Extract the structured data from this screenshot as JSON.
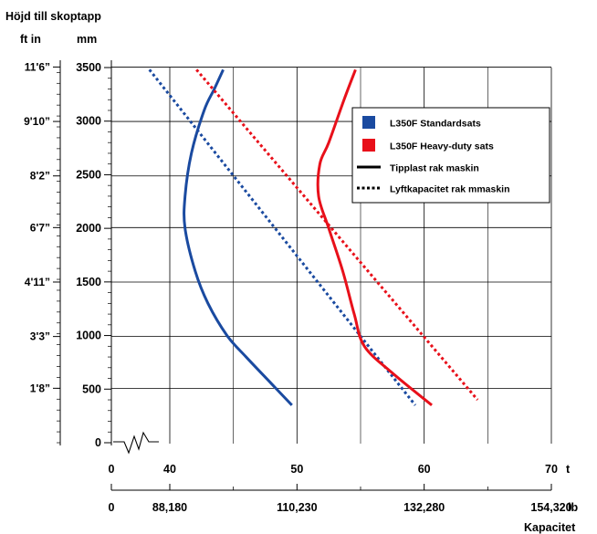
{
  "chart_data": {
    "type": "line",
    "title": "Höjd till skoptapp",
    "left_units": {
      "imperial": "ft in",
      "metric": "mm"
    },
    "y_metric_ticks": [
      "0",
      "500",
      "1000",
      "1500",
      "2000",
      "2500",
      "3000",
      "3500"
    ],
    "y_imperial_ticks": [
      {
        "label": "1'8”",
        "mm": 508
      },
      {
        "label": "3'3”",
        "mm": 991
      },
      {
        "label": "4'11”",
        "mm": 1499
      },
      {
        "label": "6'7”",
        "mm": 2007
      },
      {
        "label": "8'2”",
        "mm": 2489
      },
      {
        "label": "9'10”",
        "mm": 2997
      },
      {
        "label": "11'6”",
        "mm": 3505
      }
    ],
    "x_t_ticks": [
      "0",
      "40",
      "50",
      "60",
      "70"
    ],
    "x_t_unit": "t",
    "x_lb_ticks": [
      {
        "label": "0",
        "t": 0
      },
      {
        "label": "88,180",
        "t": 40
      },
      {
        "label": "110,230",
        "t": 50
      },
      {
        "label": "132,280",
        "t": 60
      },
      {
        "label": "154,320",
        "t": 70
      }
    ],
    "x_lb_unit": "lb",
    "xlabel": "Kapacitet",
    "axis_break_note": "x axis broken between 0 and 40 t",
    "ylim": [
      0,
      3500
    ],
    "xlim": [
      36,
      70
    ],
    "legend": {
      "placement": "right",
      "entries": [
        {
          "label": "L350F Standardsats",
          "swatch": "square",
          "color": "#1a4aa0"
        },
        {
          "label": "L350F Heavy-duty sats",
          "swatch": "square",
          "color": "#e8101a"
        },
        {
          "label": "Tipplast rak maskin",
          "swatch": "solid-line",
          "color": "#000000"
        },
        {
          "label": "Lyftkapacitet rak mmaskin",
          "swatch": "dotted-line",
          "color": "#000000"
        }
      ]
    },
    "series": [
      {
        "kit": "L350F Standardsats",
        "measure": "Tipplast rak maskin",
        "color": "#1a4aa0",
        "style": "solid",
        "points": [
          [
            49.6,
            350
          ],
          [
            48.0,
            550
          ],
          [
            46.0,
            800
          ],
          [
            44.5,
            1000
          ],
          [
            43.0,
            1300
          ],
          [
            42.0,
            1600
          ],
          [
            41.2,
            2000
          ],
          [
            41.2,
            2300
          ],
          [
            41.7,
            2700
          ],
          [
            42.7,
            3100
          ],
          [
            43.5,
            3300
          ],
          [
            44.2,
            3480
          ]
        ]
      },
      {
        "kit": "L350F Standardsats",
        "measure": "Lyftkapacitet rak mmaskin",
        "color": "#1a4aa0",
        "style": "dotted",
        "points": [
          [
            38.4,
            3480
          ],
          [
            59.3,
            350
          ]
        ]
      },
      {
        "kit": "L350F Heavy-duty sats",
        "measure": "Tipplast rak maskin",
        "color": "#e8101a",
        "style": "solid",
        "points": [
          [
            60.6,
            350
          ],
          [
            57.5,
            650
          ],
          [
            55.3,
            900
          ],
          [
            54.5,
            1200
          ],
          [
            53.6,
            1600
          ],
          [
            52.5,
            2000
          ],
          [
            51.7,
            2300
          ],
          [
            51.8,
            2600
          ],
          [
            52.5,
            2800
          ],
          [
            53.7,
            3200
          ],
          [
            54.6,
            3480
          ]
        ]
      },
      {
        "kit": "L350F Heavy-duty sats",
        "measure": "Lyftkapacitet rak mmaskin",
        "color": "#e8101a",
        "style": "dotted",
        "points": [
          [
            42.1,
            3480
          ],
          [
            64.2,
            400
          ]
        ]
      }
    ],
    "grid": true
  }
}
